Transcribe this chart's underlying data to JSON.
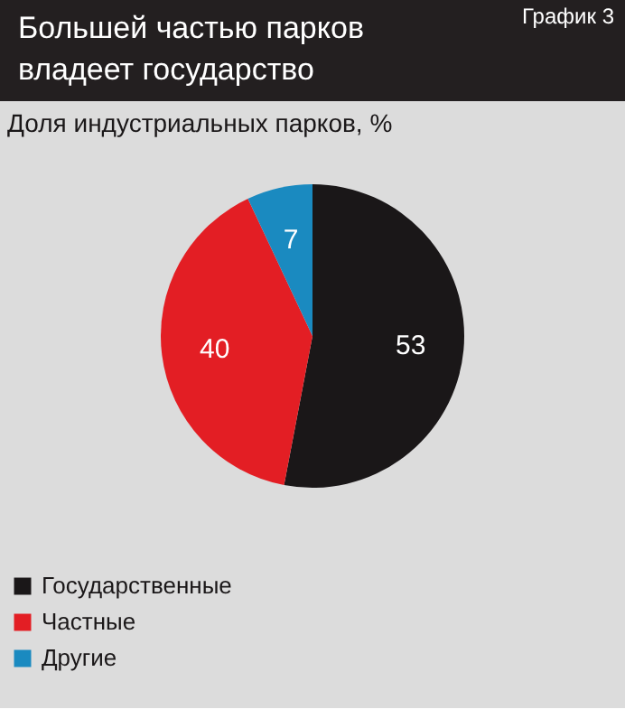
{
  "chart_data": {
    "type": "pie",
    "title": "Большей частью парков владеет государство",
    "subtitle": "Доля индустриальных парков, %",
    "annotations": [
      "График 3"
    ],
    "categories": [
      "Государственные",
      "Частные",
      "Другие"
    ],
    "values": [
      53,
      40,
      7
    ],
    "colors": [
      "#1a1718",
      "#e31e24",
      "#1a8ac0"
    ],
    "data_labels": true,
    "legend": "bottom left"
  }
}
